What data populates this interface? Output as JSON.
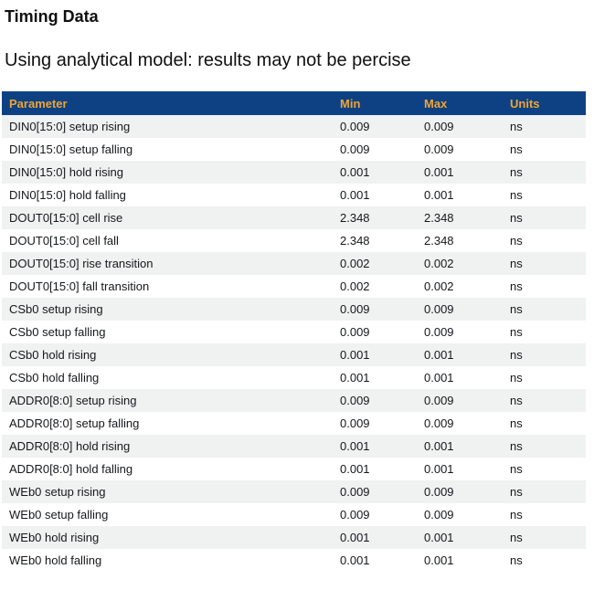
{
  "page": {
    "title": "Timing Data",
    "subtitle": "Using analytical model: results may not be percise"
  },
  "colors": {
    "table_header_bg": "#0e4183",
    "table_header_text": "#f0a432",
    "row_alt_bg": "#f0f1f1",
    "body_text": "#15181b"
  },
  "table": {
    "columns": [
      "Parameter",
      "Min",
      "Max",
      "Units"
    ],
    "rows": [
      {
        "parameter": "DIN0[15:0] setup rising",
        "min": "0.009",
        "max": "0.009",
        "units": "ns"
      },
      {
        "parameter": "DIN0[15:0] setup falling",
        "min": "0.009",
        "max": "0.009",
        "units": "ns"
      },
      {
        "parameter": "DIN0[15:0] hold rising",
        "min": "0.001",
        "max": "0.001",
        "units": "ns"
      },
      {
        "parameter": "DIN0[15:0] hold falling",
        "min": "0.001",
        "max": "0.001",
        "units": "ns"
      },
      {
        "parameter": "DOUT0[15:0] cell rise",
        "min": "2.348",
        "max": "2.348",
        "units": "ns"
      },
      {
        "parameter": "DOUT0[15:0] cell fall",
        "min": "2.348",
        "max": "2.348",
        "units": "ns"
      },
      {
        "parameter": "DOUT0[15:0] rise transition",
        "min": "0.002",
        "max": "0.002",
        "units": "ns"
      },
      {
        "parameter": "DOUT0[15:0] fall transition",
        "min": "0.002",
        "max": "0.002",
        "units": "ns"
      },
      {
        "parameter": "CSb0 setup rising",
        "min": "0.009",
        "max": "0.009",
        "units": "ns"
      },
      {
        "parameter": "CSb0 setup falling",
        "min": "0.009",
        "max": "0.009",
        "units": "ns"
      },
      {
        "parameter": "CSb0 hold rising",
        "min": "0.001",
        "max": "0.001",
        "units": "ns"
      },
      {
        "parameter": "CSb0 hold falling",
        "min": "0.001",
        "max": "0.001",
        "units": "ns"
      },
      {
        "parameter": "ADDR0[8:0] setup rising",
        "min": "0.009",
        "max": "0.009",
        "units": "ns"
      },
      {
        "parameter": "ADDR0[8:0] setup falling",
        "min": "0.009",
        "max": "0.009",
        "units": "ns"
      },
      {
        "parameter": "ADDR0[8:0] hold rising",
        "min": "0.001",
        "max": "0.001",
        "units": "ns"
      },
      {
        "parameter": "ADDR0[8:0] hold falling",
        "min": "0.001",
        "max": "0.001",
        "units": "ns"
      },
      {
        "parameter": "WEb0 setup rising",
        "min": "0.009",
        "max": "0.009",
        "units": "ns"
      },
      {
        "parameter": "WEb0 setup falling",
        "min": "0.009",
        "max": "0.009",
        "units": "ns"
      },
      {
        "parameter": "WEb0 hold rising",
        "min": "0.001",
        "max": "0.001",
        "units": "ns"
      },
      {
        "parameter": "WEb0 hold falling",
        "min": "0.001",
        "max": "0.001",
        "units": "ns"
      }
    ]
  }
}
